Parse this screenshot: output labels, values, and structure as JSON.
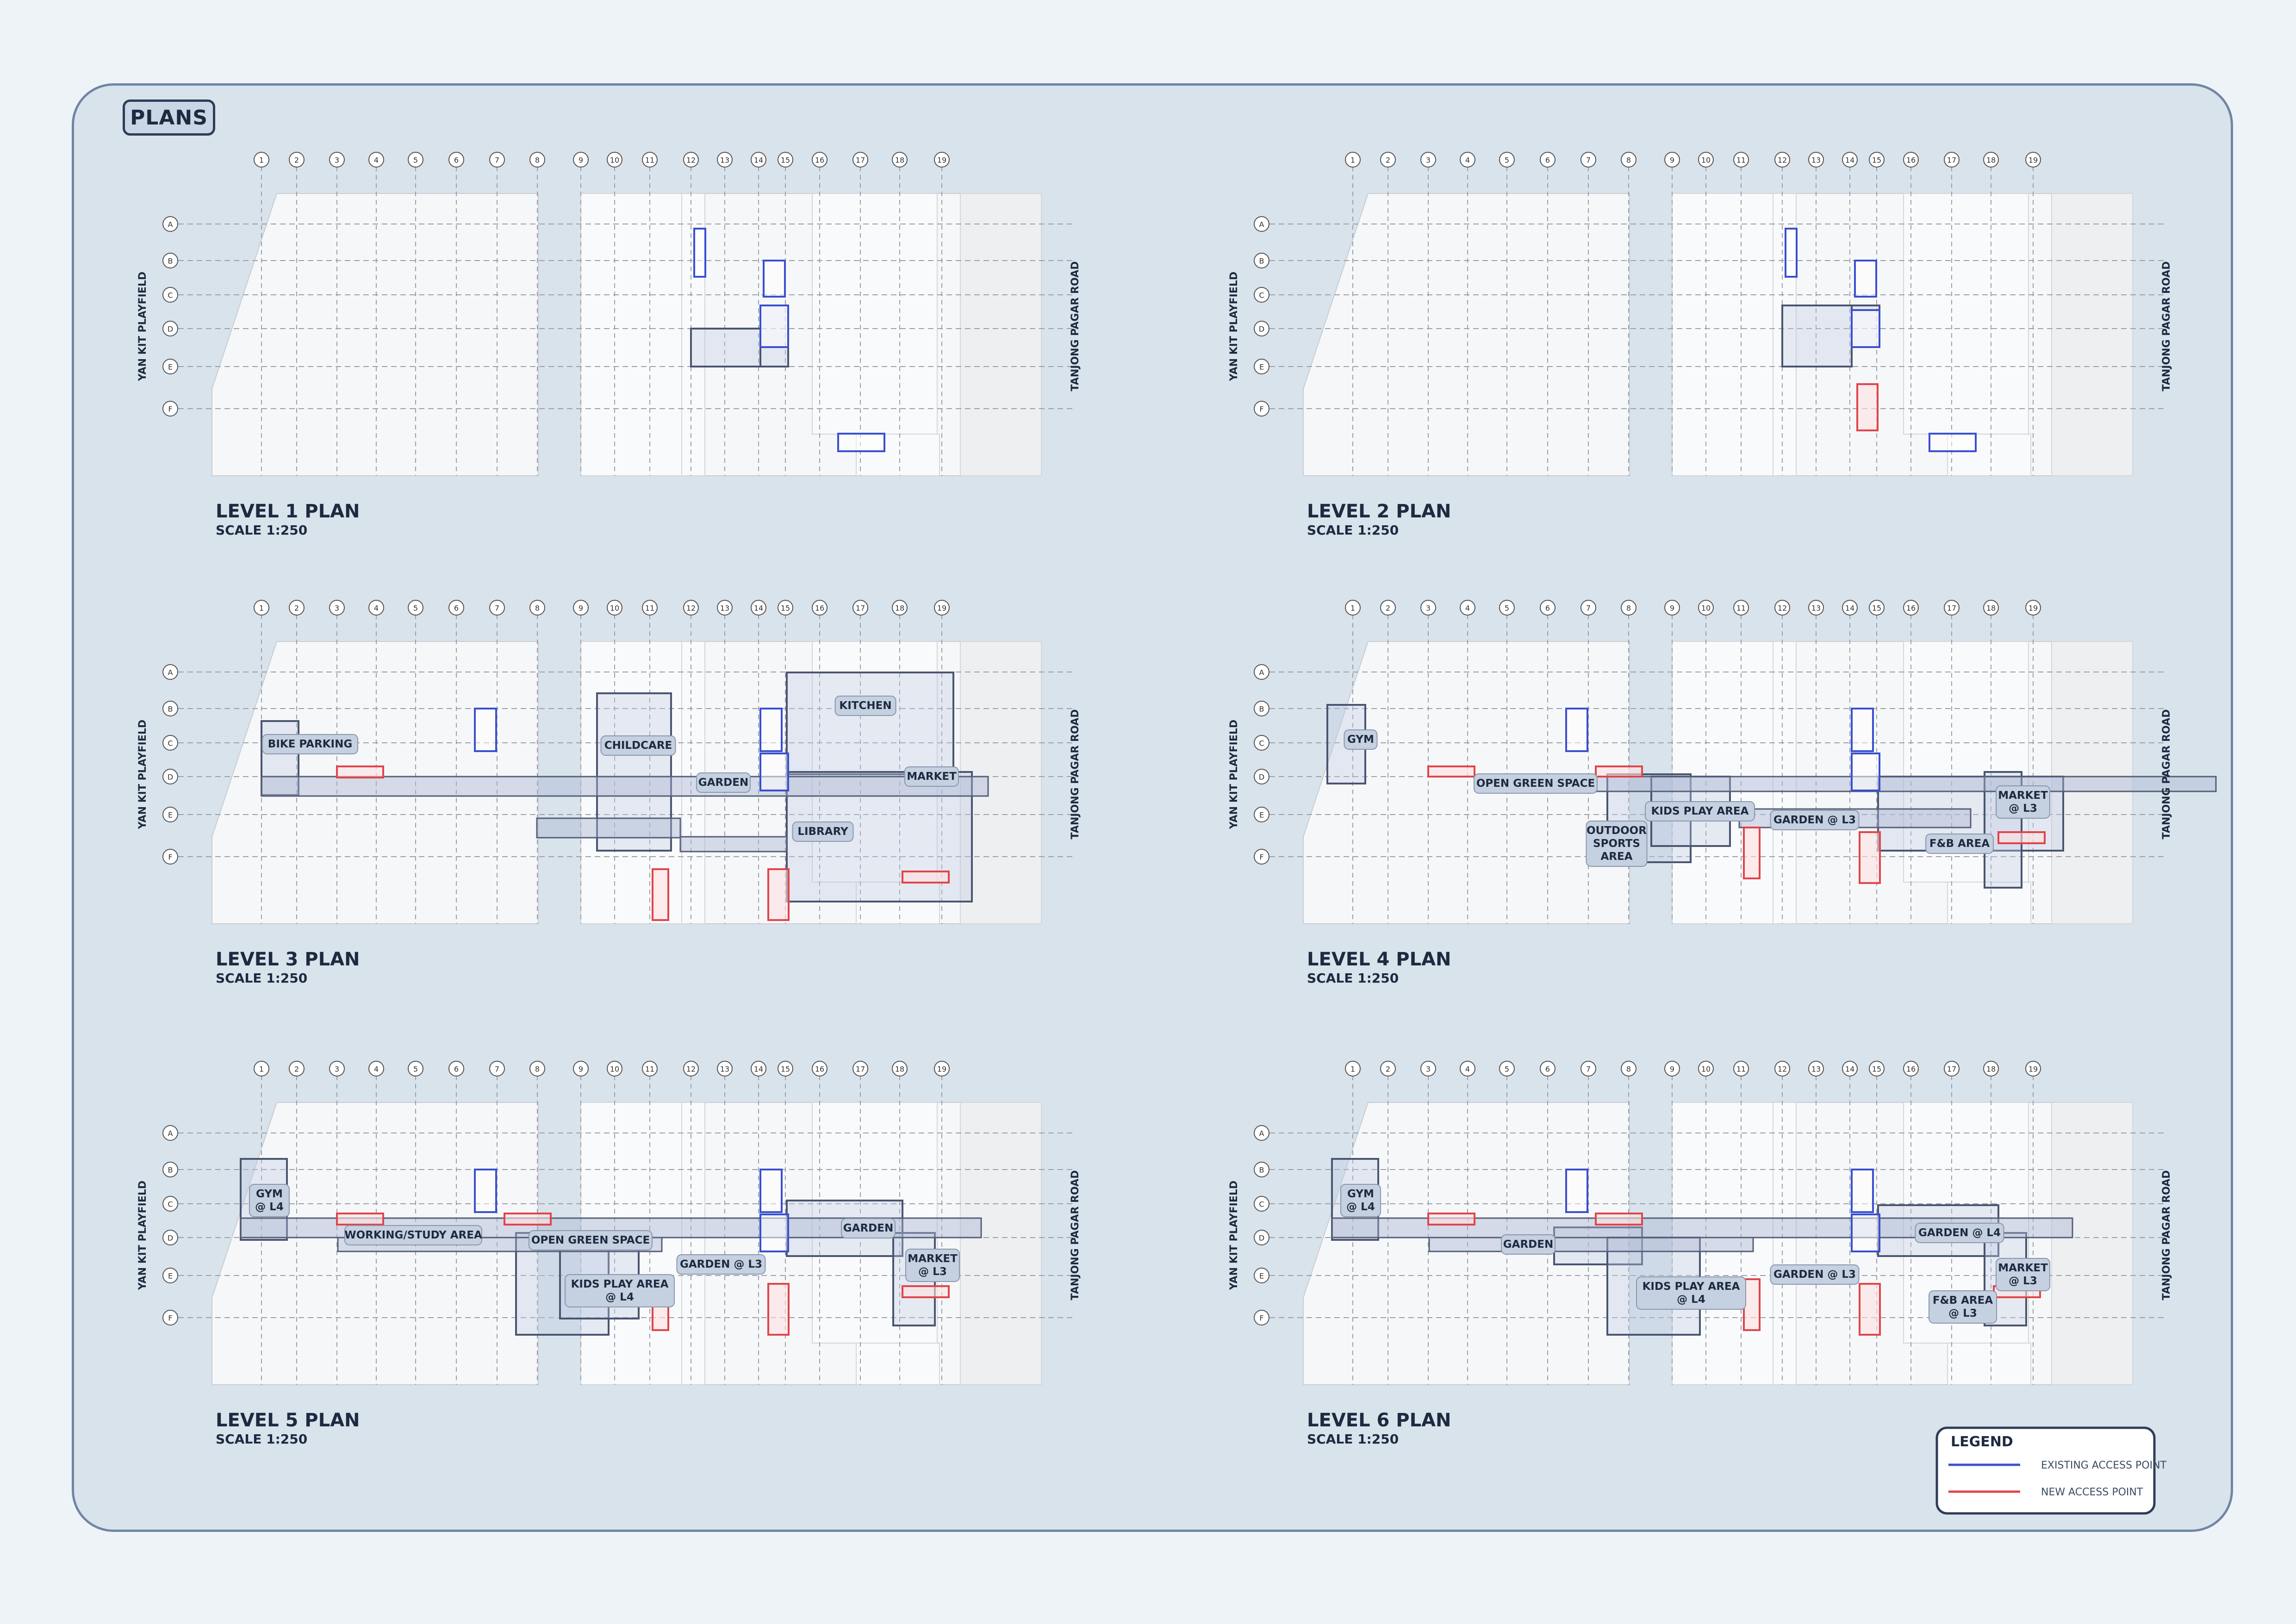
{
  "section_title": "PLANS",
  "grid": {
    "columns": [
      "1",
      "2",
      "3",
      "4",
      "5",
      "6",
      "7",
      "8",
      "9",
      "10",
      "11",
      "12",
      "13",
      "14",
      "15",
      "16",
      "17",
      "18",
      "19"
    ],
    "rows": [
      "A",
      "B",
      "C",
      "D",
      "E",
      "F"
    ]
  },
  "roads": {
    "left": "YAN KIT PLAYFIELD",
    "right": "TANJONG PAGAR ROAD"
  },
  "plans": [
    {
      "title": "LEVEL 1 PLAN",
      "scale": "SCALE 1:250",
      "labels": []
    },
    {
      "title": "LEVEL 2 PLAN",
      "scale": "SCALE 1:250",
      "labels": []
    },
    {
      "title": "LEVEL 3 PLAN",
      "scale": "SCALE 1:250",
      "labels": [
        "BIKE PARKING",
        "CHILDCARE",
        "KITCHEN",
        "GARDEN",
        "MARKET",
        "LIBRARY"
      ]
    },
    {
      "title": "LEVEL 4 PLAN",
      "scale": "SCALE 1:250",
      "labels": [
        "GYM",
        "OPEN GREEN SPACE",
        "KIDS PLAY AREA",
        "OUTDOOR|SPORTS|AREA",
        "GARDEN @ L3",
        "MARKET|@ L3",
        "F&B AREA"
      ]
    },
    {
      "title": "LEVEL 5 PLAN",
      "scale": "SCALE 1:250",
      "labels": [
        "GYM|@ L4",
        "WORKING/STUDY AREA",
        "OPEN GREEN SPACE",
        "KIDS PLAY AREA|@ L4",
        "GARDEN @ L3",
        "GARDEN",
        "MARKET|@ L3"
      ]
    },
    {
      "title": "LEVEL 6 PLAN",
      "scale": "SCALE 1:250",
      "labels": [
        "GYM|@ L4",
        "GARDEN",
        "KIDS PLAY AREA|@ L4",
        "GARDEN @ L3",
        "GARDEN @ L4",
        "MARKET|@ L3",
        "F&B AREA|@ L3"
      ]
    }
  ],
  "legend": {
    "title": "LEGEND",
    "items": [
      {
        "label": "EXISTING ACCESS POINT",
        "color": "#3a4fd0"
      },
      {
        "label": "NEW ACCESS POINT",
        "color": "#e0454b"
      }
    ]
  },
  "colors": {
    "existing": "#3a4fd0",
    "new": "#e0454b",
    "frame": "#6f86a3",
    "background": "#d9e3ec"
  }
}
